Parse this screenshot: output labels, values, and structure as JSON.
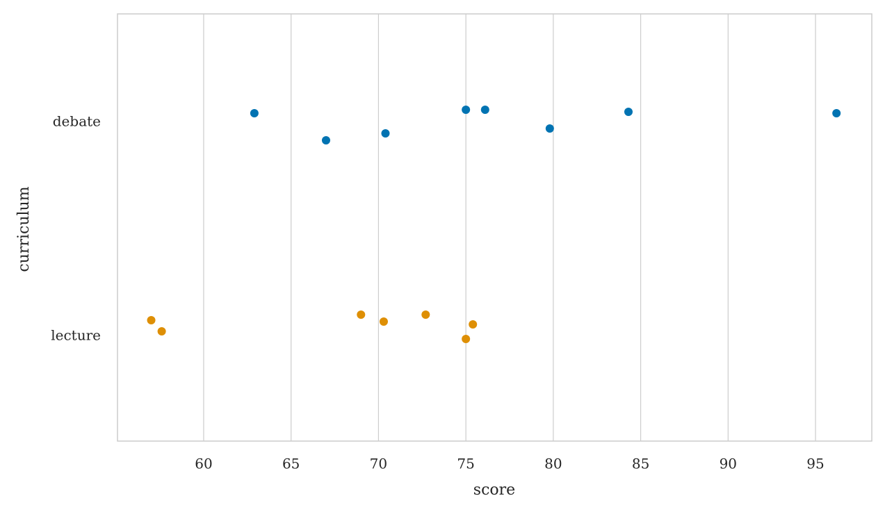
{
  "chart_data": {
    "type": "strip",
    "x_label": "score",
    "y_label": "curriculum",
    "categories": [
      "debate",
      "lecture"
    ],
    "series": [
      {
        "color": "#0173b2",
        "values": [
          62.9,
          67.0,
          70.4,
          75.0,
          76.1,
          79.8,
          84.3,
          96.2
        ]
      },
      {
        "color": "#de8f05",
        "values": [
          57.0,
          57.6,
          69.0,
          70.3,
          72.7,
          75.0,
          75.4
        ]
      }
    ],
    "xlim": [
      55.07,
      98.22
    ],
    "xticks": [
      60,
      65,
      70,
      75,
      80,
      85,
      90,
      95
    ],
    "grid": true
  }
}
